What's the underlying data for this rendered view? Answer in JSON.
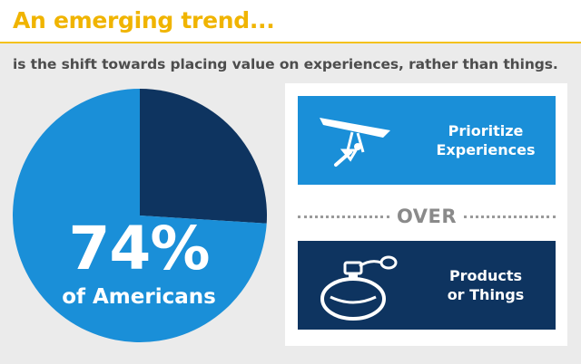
{
  "header": {
    "title": "An emerging trend..."
  },
  "subtitle": "is the shift towards placing value on experiences, rather than things.",
  "chart_data": {
    "type": "pie",
    "slices": [
      {
        "label": "Prioritize Experiences",
        "value": 74,
        "color": "#1a8fd8"
      },
      {
        "label": "Products or Things",
        "value": 26,
        "color": "#0e3460"
      }
    ],
    "center_value": "74%",
    "center_label": "of Americans"
  },
  "comparison": {
    "top_label": "Prioritize\nExperiences",
    "divider": "OVER",
    "bottom_label": "Products\nor Things"
  },
  "icons": {
    "top": "hang-glider-icon",
    "bottom": "perfume-bottle-icon"
  },
  "colors": {
    "accent": "#f0b400",
    "experiences": "#1a8fd8",
    "things": "#0e3460"
  }
}
